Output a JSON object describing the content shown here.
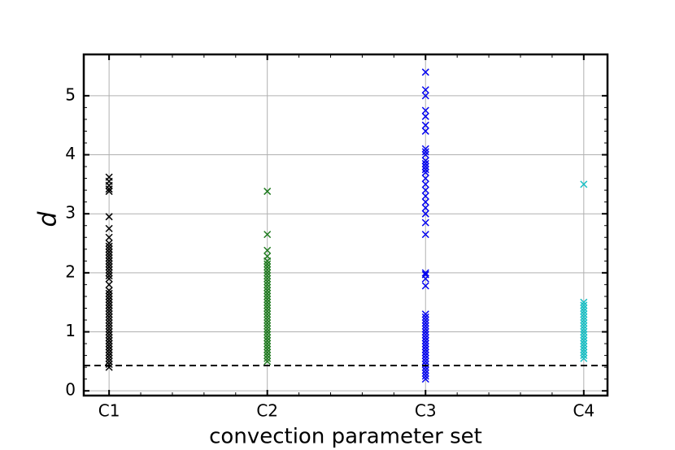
{
  "chart_data": {
    "type": "strip",
    "x_label": "convection parameter set",
    "y_label": "d",
    "xlim": [
      0.84,
      4.15
    ],
    "xticks": [
      {
        "value": 1,
        "label": "C1"
      },
      {
        "value": 2,
        "label": "C2"
      },
      {
        "value": 3,
        "label": "C3"
      },
      {
        "value": 4,
        "label": "C4"
      }
    ],
    "ylim": [
      -0.08,
      5.7
    ],
    "yticks": [
      0,
      1,
      2,
      3,
      4,
      5
    ],
    "grid": true,
    "reference_line": 0.43,
    "series": [
      {
        "x": 1,
        "color": "#000000",
        "values": [
          0.4,
          0.45,
          0.5,
          0.55,
          0.6,
          0.65,
          0.7,
          0.75,
          0.8,
          0.85,
          0.9,
          0.95,
          1.0,
          1.05,
          1.1,
          1.15,
          1.2,
          1.25,
          1.3,
          1.35,
          1.4,
          1.45,
          1.5,
          1.55,
          1.6,
          1.65,
          1.7,
          1.8,
          1.9,
          1.95,
          2.0,
          2.05,
          2.1,
          2.15,
          2.2,
          2.25,
          2.3,
          2.35,
          2.4,
          2.45,
          2.5,
          2.6,
          2.75,
          2.95,
          3.38,
          3.42,
          3.48,
          3.55,
          3.62
        ]
      },
      {
        "x": 2,
        "color": "#1f7a1f",
        "values": [
          0.5,
          0.55,
          0.6,
          0.65,
          0.7,
          0.75,
          0.8,
          0.85,
          0.9,
          0.95,
          1.0,
          1.05,
          1.1,
          1.15,
          1.2,
          1.25,
          1.3,
          1.35,
          1.4,
          1.45,
          1.5,
          1.55,
          1.6,
          1.65,
          1.7,
          1.75,
          1.8,
          1.85,
          1.9,
          1.95,
          2.0,
          2.05,
          2.1,
          2.15,
          2.2,
          2.28,
          2.38,
          2.65,
          3.38
        ]
      },
      {
        "x": 3,
        "color": "#0000ee",
        "values": [
          0.2,
          0.25,
          0.3,
          0.35,
          0.4,
          0.45,
          0.5,
          0.55,
          0.6,
          0.65,
          0.7,
          0.75,
          0.8,
          0.85,
          0.9,
          0.95,
          1.0,
          1.05,
          1.1,
          1.15,
          1.2,
          1.25,
          1.3,
          1.78,
          1.9,
          1.97,
          2.0,
          2.65,
          2.85,
          3.0,
          3.1,
          3.2,
          3.3,
          3.4,
          3.5,
          3.6,
          3.7,
          3.75,
          3.8,
          3.85,
          3.9,
          4.0,
          4.05,
          4.1,
          4.4,
          4.5,
          4.65,
          4.75,
          5.0,
          5.1,
          5.4
        ]
      },
      {
        "x": 4,
        "color": "#17bfc4",
        "values": [
          0.55,
          0.6,
          0.65,
          0.7,
          0.75,
          0.8,
          0.85,
          0.9,
          0.95,
          1.0,
          1.05,
          1.1,
          1.15,
          1.2,
          1.25,
          1.3,
          1.35,
          1.4,
          1.45,
          1.5,
          3.5
        ]
      }
    ]
  }
}
